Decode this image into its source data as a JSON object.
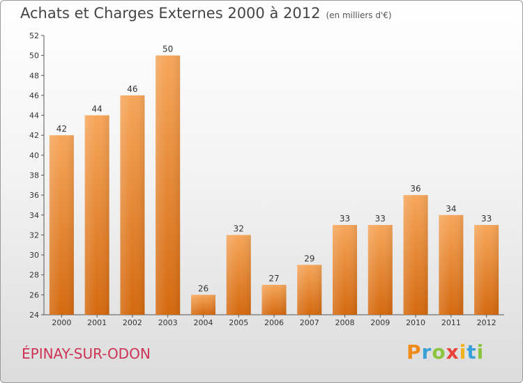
{
  "title": "Achats et Charges Externes 2000 à 2012",
  "subtitle": "(en milliers d'€)",
  "city": "ÉPINAY-SUR-ODON",
  "logo": {
    "p": "P",
    "r": "r",
    "o": "o",
    "x": "x",
    "i1": "i",
    "t": "t",
    "i2": "i"
  },
  "chart_data": {
    "type": "bar",
    "title": "Achats et Charges Externes 2000 à 2012",
    "categories": [
      "2000",
      "2001",
      "2002",
      "2003",
      "2004",
      "2005",
      "2006",
      "2007",
      "2008",
      "2009",
      "2010",
      "2011",
      "2012"
    ],
    "values": [
      42,
      44,
      46,
      50,
      26,
      32,
      27,
      29,
      33,
      33,
      36,
      34,
      33
    ],
    "ylim": [
      24,
      52
    ],
    "yticks": [
      24,
      26,
      28,
      30,
      32,
      34,
      36,
      38,
      40,
      42,
      44,
      46,
      48,
      50,
      52
    ],
    "grid": false,
    "bar_color": "#f08a1a"
  }
}
